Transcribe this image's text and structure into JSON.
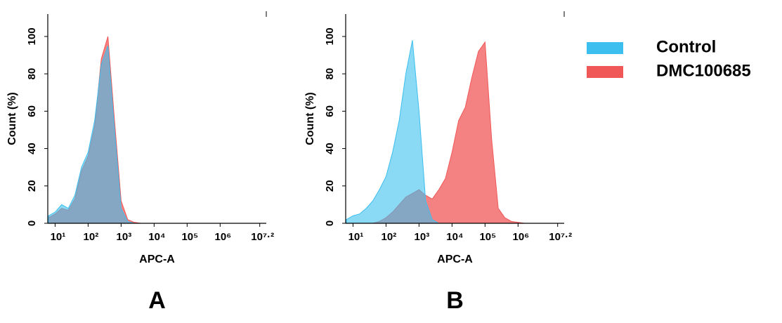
{
  "chart_data": [
    {
      "type": "area",
      "panel_label": "A",
      "x_label": "APC-A",
      "y_label": "Count (%)",
      "xscale": "log",
      "xlim": [
        6,
        25000000
      ],
      "ylim": [
        0,
        112
      ],
      "xticks": [
        {
          "value": 10,
          "label": "10¹"
        },
        {
          "value": 100,
          "label": "10²"
        },
        {
          "value": 1000,
          "label": "10³"
        },
        {
          "value": 10000,
          "label": "10⁴"
        },
        {
          "value": 100000,
          "label": "10⁵"
        },
        {
          "value": 1000000,
          "label": "10⁶"
        },
        {
          "value": 15848932,
          "label": "10⁷·²"
        }
      ],
      "yticks": [
        0,
        20,
        40,
        60,
        80,
        100
      ],
      "x": [
        6.3,
        10,
        15.8,
        25.1,
        39.8,
        63.1,
        100,
        158,
        251,
        398,
        631,
        1000,
        1585,
        2512,
        3981,
        6310,
        10000,
        15849,
        25119,
        39811,
        63096,
        100000,
        158489,
        251189,
        398107,
        630957,
        1000000,
        1584893,
        15848932
      ],
      "series": [
        {
          "name": "DMC100685",
          "color": "#f05858",
          "values": [
            3,
            5,
            8,
            7,
            13,
            28,
            36,
            52,
            88,
            100,
            55,
            12,
            2,
            0.5,
            0,
            0,
            0,
            0,
            0,
            0,
            0,
            0,
            0,
            0,
            0,
            0,
            0,
            0,
            0
          ]
        },
        {
          "name": "Control",
          "color": "#3cbfee",
          "values": [
            4,
            6,
            10,
            8,
            15,
            30,
            38,
            55,
            85,
            95,
            50,
            8,
            1,
            0,
            0,
            0,
            0,
            0,
            0,
            0,
            0,
            0,
            0,
            0,
            0,
            0,
            0,
            0,
            0
          ]
        }
      ]
    },
    {
      "type": "area",
      "panel_label": "B",
      "x_label": "APC-A",
      "y_label": "Count (%)",
      "xscale": "log",
      "xlim": [
        6,
        25000000
      ],
      "ylim": [
        0,
        112
      ],
      "xticks": [
        {
          "value": 10,
          "label": "10¹"
        },
        {
          "value": 100,
          "label": "10²"
        },
        {
          "value": 1000,
          "label": "10³"
        },
        {
          "value": 10000,
          "label": "10⁴"
        },
        {
          "value": 100000,
          "label": "10⁵"
        },
        {
          "value": 1000000,
          "label": "10⁶"
        },
        {
          "value": 15848932,
          "label": "10⁷·²"
        }
      ],
      "yticks": [
        0,
        20,
        40,
        60,
        80,
        100
      ],
      "x": [
        6.3,
        10,
        15.8,
        25.1,
        39.8,
        63.1,
        100,
        158,
        251,
        398,
        631,
        1000,
        1585,
        2512,
        3981,
        6310,
        10000,
        15849,
        25119,
        39811,
        63096,
        100000,
        158489,
        251189,
        398107,
        630957,
        1000000,
        1584893,
        15848932
      ],
      "series": [
        {
          "name": "DMC100685",
          "color": "#f05858",
          "values": [
            0,
            0,
            0,
            0,
            0,
            1,
            3,
            6,
            10,
            14,
            16,
            18,
            15,
            13,
            18,
            24,
            38,
            55,
            62,
            78,
            92,
            97,
            45,
            8,
            3,
            1,
            0.5,
            0,
            0
          ]
        },
        {
          "name": "Control",
          "color": "#3cbfee",
          "values": [
            2,
            4,
            5,
            8,
            12,
            18,
            25,
            38,
            55,
            80,
            98,
            60,
            12,
            2,
            0,
            0,
            0,
            0,
            0,
            0,
            0,
            0,
            0,
            0,
            0,
            0,
            0,
            0,
            0
          ]
        }
      ]
    }
  ]
}
